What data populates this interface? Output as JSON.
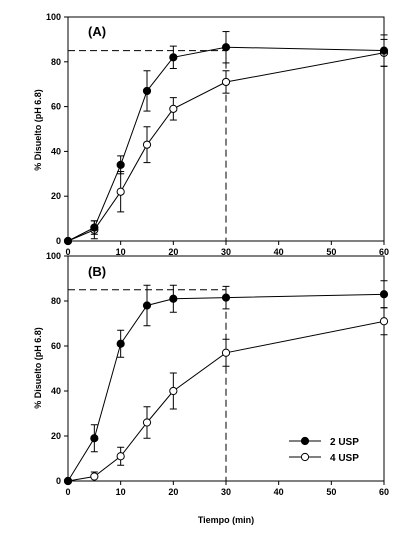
{
  "chart_data": [
    {
      "type": "line",
      "panel_label": "(A)",
      "ylabel": "% Disuelto (pH 6.8)",
      "xlabel": "",
      "xlim": [
        0,
        60
      ],
      "ylim": [
        0,
        100
      ],
      "x_ticks": [
        "0",
        "10",
        "20",
        "30",
        "40",
        "50",
        "60"
      ],
      "y_ticks": [
        "0",
        "20",
        "40",
        "60",
        "80",
        "100"
      ],
      "reference_lines": {
        "y": 85,
        "x": 30,
        "style": "dashed"
      },
      "series": [
        {
          "name": "2 USP",
          "marker": "filled-circle",
          "x": [
            0,
            5,
            10,
            15,
            20,
            30,
            60
          ],
          "y": [
            0,
            6,
            34,
            67,
            82,
            86.5,
            85
          ],
          "err": [
            0,
            3,
            4,
            9,
            5,
            7,
            7
          ]
        },
        {
          "name": "4 USP",
          "marker": "open-circle",
          "x": [
            0,
            5,
            10,
            15,
            20,
            30,
            60
          ],
          "y": [
            0,
            5,
            22,
            43,
            59,
            71,
            84
          ],
          "err": [
            0,
            4,
            9,
            8,
            5,
            5,
            6
          ]
        }
      ],
      "grid": false
    },
    {
      "type": "line",
      "panel_label": "(B)",
      "ylabel": "% Disuelto (pH 6.8)",
      "xlabel": "Tiempo (min)",
      "xlim": [
        0,
        60
      ],
      "ylim": [
        0,
        100
      ],
      "x_ticks": [
        "0",
        "10",
        "20",
        "30",
        "40",
        "50",
        "60"
      ],
      "y_ticks": [
        "0",
        "20",
        "40",
        "60",
        "80",
        "100"
      ],
      "reference_lines": {
        "y": 85,
        "x": 30,
        "style": "dashed"
      },
      "series": [
        {
          "name": "2 USP",
          "marker": "filled-circle",
          "x": [
            0,
            5,
            10,
            15,
            20,
            30,
            60
          ],
          "y": [
            0,
            19,
            61,
            78,
            81,
            81.5,
            83
          ],
          "err": [
            0,
            6,
            6,
            9,
            6,
            5,
            6
          ]
        },
        {
          "name": "4 USP",
          "marker": "open-circle",
          "x": [
            0,
            5,
            10,
            15,
            20,
            30,
            60
          ],
          "y": [
            0,
            2,
            11,
            26,
            40,
            57,
            71
          ],
          "err": [
            0,
            2,
            4,
            7,
            8,
            6,
            6
          ]
        }
      ],
      "legend": {
        "placement": "bottom-right",
        "entries": [
          "2 USP",
          "4 USP"
        ]
      },
      "grid": false
    }
  ]
}
